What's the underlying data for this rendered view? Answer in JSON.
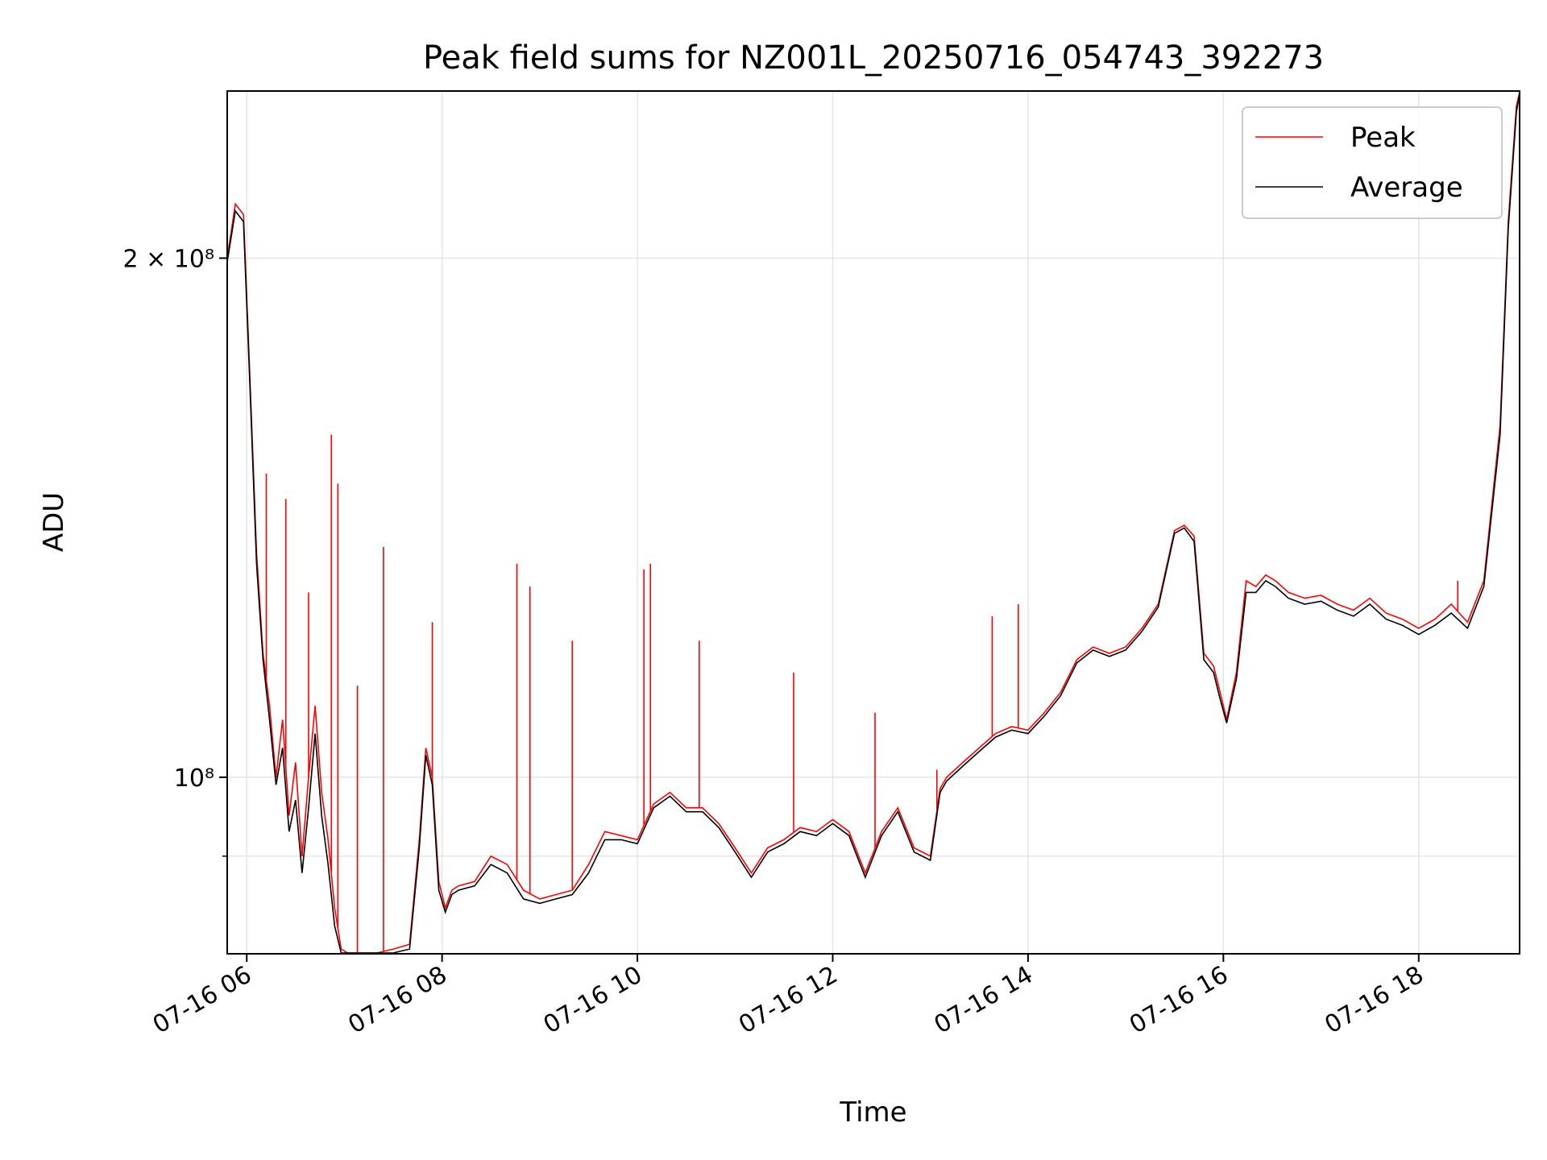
{
  "chart_data": {
    "type": "line",
    "title": "Peak field sums for NZ001L_20250716_054743_392273",
    "xlabel": "Time",
    "ylabel": "ADU",
    "y_scale": "log",
    "ylim": [
      79000000,
      250000000
    ],
    "xlim": [
      "2025-07-16 05:48",
      "2025-07-16 19:02"
    ],
    "grid": true,
    "legend_position": "top-right",
    "x_ticks": [
      {
        "t": "2025-07-16 06:00",
        "label": "07-16 06"
      },
      {
        "t": "2025-07-16 08:00",
        "label": "07-16 08"
      },
      {
        "t": "2025-07-16 10:00",
        "label": "07-16 10"
      },
      {
        "t": "2025-07-16 12:00",
        "label": "07-16 12"
      },
      {
        "t": "2025-07-16 14:00",
        "label": "07-16 14"
      },
      {
        "t": "2025-07-16 16:00",
        "label": "07-16 16"
      },
      {
        "t": "2025-07-16 18:00",
        "label": "07-16 18"
      }
    ],
    "y_ticks": [
      {
        "v": 200000000,
        "label": "2 × 10⁸"
      },
      {
        "v": 100000000,
        "label": "10⁸"
      }
    ],
    "y_minor_ticks": [
      90000000
    ],
    "series": [
      {
        "name": "Peak",
        "color": "#ff0000",
        "x": [
          "05:48",
          "05:53",
          "05:58",
          "06:02",
          "06:06",
          "06:10",
          "06:14",
          "06:18",
          "06:22",
          "06:26",
          "06:30",
          "06:34",
          "06:38",
          "06:42",
          "06:46",
          "06:50",
          "06:54",
          "06:58",
          "07:02",
          "07:06",
          "07:10",
          "07:20",
          "07:30",
          "07:40",
          "07:46",
          "07:50",
          "07:54",
          "07:58",
          "08:02",
          "08:06",
          "08:10",
          "08:20",
          "08:30",
          "08:40",
          "08:50",
          "09:00",
          "09:10",
          "09:20",
          "09:30",
          "09:40",
          "09:50",
          "10:00",
          "10:10",
          "10:20",
          "10:30",
          "10:40",
          "10:50",
          "11:00",
          "11:10",
          "11:20",
          "11:30",
          "11:40",
          "11:50",
          "12:00",
          "12:10",
          "12:20",
          "12:30",
          "12:40",
          "12:50",
          "13:00",
          "13:06",
          "13:10",
          "13:20",
          "13:30",
          "13:40",
          "13:50",
          "14:00",
          "14:10",
          "14:20",
          "14:30",
          "14:40",
          "14:50",
          "15:00",
          "15:10",
          "15:20",
          "15:30",
          "15:36",
          "15:42",
          "15:48",
          "15:54",
          "15:58",
          "16:02",
          "16:08",
          "16:14",
          "16:20",
          "16:26",
          "16:32",
          "16:40",
          "16:50",
          "17:00",
          "17:10",
          "17:20",
          "17:30",
          "17:40",
          "17:50",
          "18:00",
          "18:10",
          "18:20",
          "18:30",
          "18:40",
          "18:50",
          "18:55",
          "19:00",
          "19:02"
        ],
        "y": [
          200000000,
          215000000,
          212000000,
          170000000,
          135000000,
          118000000,
          110000000,
          100000000,
          108000000,
          95000000,
          102000000,
          90000000,
          100000000,
          110000000,
          98000000,
          92000000,
          84000000,
          79500000,
          79000000,
          79000000,
          79000000,
          79000000,
          79500000,
          80000000,
          92000000,
          104000000,
          100000000,
          87000000,
          84000000,
          86000000,
          86500000,
          87000000,
          90000000,
          89000000,
          86000000,
          85000000,
          85500000,
          86000000,
          89000000,
          93000000,
          92500000,
          92000000,
          96500000,
          98000000,
          96000000,
          96000000,
          94000000,
          91000000,
          88000000,
          91000000,
          92000000,
          93500000,
          93000000,
          94500000,
          93000000,
          88000000,
          93000000,
          96000000,
          91000000,
          90000000,
          98500000,
          100000000,
          102000000,
          104000000,
          106000000,
          107000000,
          106500000,
          109000000,
          112000000,
          117000000,
          119000000,
          118000000,
          119000000,
          122000000,
          126000000,
          139000000,
          140000000,
          138000000,
          118000000,
          116000000,
          112000000,
          108000000,
          115000000,
          130000000,
          129000000,
          131000000,
          130000000,
          128000000,
          127000000,
          127500000,
          126000000,
          125000000,
          127000000,
          124500000,
          123500000,
          122000000,
          123500000,
          126000000,
          123000000,
          130000000,
          160000000,
          210000000,
          245000000,
          250000000
        ]
      },
      {
        "name": "Average",
        "color": "#000000",
        "x": [
          "05:48",
          "05:53",
          "05:58",
          "06:02",
          "06:06",
          "06:10",
          "06:14",
          "06:18",
          "06:22",
          "06:26",
          "06:30",
          "06:34",
          "06:38",
          "06:42",
          "06:46",
          "06:50",
          "06:54",
          "06:58",
          "07:02",
          "07:06",
          "07:10",
          "07:20",
          "07:30",
          "07:40",
          "07:46",
          "07:50",
          "07:54",
          "07:58",
          "08:02",
          "08:06",
          "08:10",
          "08:20",
          "08:30",
          "08:40",
          "08:50",
          "09:00",
          "09:10",
          "09:20",
          "09:30",
          "09:40",
          "09:50",
          "10:00",
          "10:10",
          "10:20",
          "10:30",
          "10:40",
          "10:50",
          "11:00",
          "11:10",
          "11:20",
          "11:30",
          "11:40",
          "11:50",
          "12:00",
          "12:10",
          "12:20",
          "12:30",
          "12:40",
          "12:50",
          "13:00",
          "13:06",
          "13:10",
          "13:20",
          "13:30",
          "13:40",
          "13:50",
          "14:00",
          "14:10",
          "14:20",
          "14:30",
          "14:40",
          "14:50",
          "15:00",
          "15:10",
          "15:20",
          "15:30",
          "15:36",
          "15:42",
          "15:48",
          "15:54",
          "15:58",
          "16:02",
          "16:08",
          "16:14",
          "16:20",
          "16:26",
          "16:32",
          "16:40",
          "16:50",
          "17:00",
          "17:10",
          "17:20",
          "17:30",
          "17:40",
          "17:50",
          "18:00",
          "18:10",
          "18:20",
          "18:30",
          "18:40",
          "18:50",
          "18:55",
          "19:00",
          "19:02"
        ],
        "y": [
          199000000,
          213000000,
          210000000,
          168000000,
          133000000,
          117000000,
          108000000,
          99000000,
          104000000,
          93000000,
          97000000,
          88000000,
          96000000,
          106000000,
          95000000,
          89000000,
          82000000,
          79000000,
          78800000,
          78800000,
          78800000,
          78800000,
          79000000,
          79500000,
          91000000,
          103000000,
          99000000,
          86000000,
          83500000,
          85500000,
          86000000,
          86500000,
          89000000,
          88000000,
          85000000,
          84500000,
          85000000,
          85500000,
          88000000,
          92000000,
          92000000,
          91500000,
          96000000,
          97500000,
          95500000,
          95500000,
          93500000,
          90500000,
          87500000,
          90500000,
          91500000,
          93000000,
          92500000,
          94000000,
          92500000,
          87500000,
          92500000,
          95500000,
          90500000,
          89500000,
          98000000,
          99500000,
          101500000,
          103500000,
          105500000,
          106500000,
          106000000,
          108500000,
          111500000,
          116500000,
          118500000,
          117500000,
          118500000,
          121500000,
          125500000,
          138500000,
          139500000,
          137000000,
          117000000,
          115000000,
          111000000,
          107500000,
          114000000,
          128000000,
          128000000,
          130000000,
          129000000,
          127000000,
          126000000,
          126500000,
          125000000,
          124000000,
          126000000,
          123500000,
          122500000,
          121000000,
          122500000,
          124500000,
          122000000,
          129000000,
          158000000,
          208000000,
          243000000,
          249000000
        ]
      }
    ],
    "peak_spikes": [
      {
        "x": "06:12",
        "y": 150000000
      },
      {
        "x": "06:24",
        "y": 145000000
      },
      {
        "x": "06:38",
        "y": 128000000
      },
      {
        "x": "06:52",
        "y": 158000000
      },
      {
        "x": "06:56",
        "y": 148000000
      },
      {
        "x": "07:08",
        "y": 113000000
      },
      {
        "x": "07:24",
        "y": 136000000
      },
      {
        "x": "07:54",
        "y": 123000000
      },
      {
        "x": "08:46",
        "y": 133000000
      },
      {
        "x": "08:54",
        "y": 129000000
      },
      {
        "x": "09:20",
        "y": 120000000
      },
      {
        "x": "10:04",
        "y": 132000000
      },
      {
        "x": "10:08",
        "y": 133000000
      },
      {
        "x": "10:38",
        "y": 120000000
      },
      {
        "x": "11:36",
        "y": 115000000
      },
      {
        "x": "12:26",
        "y": 109000000
      },
      {
        "x": "13:04",
        "y": 101000000
      },
      {
        "x": "13:38",
        "y": 124000000
      },
      {
        "x": "13:54",
        "y": 126000000
      },
      {
        "x": "18:24",
        "y": 130000000
      }
    ]
  }
}
